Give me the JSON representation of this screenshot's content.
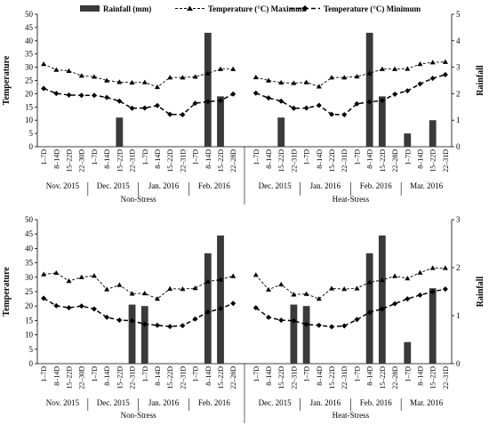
{
  "legend": {
    "rainfall": "Rainfall (mm)",
    "tmax": "Temperature (°C) Maximum",
    "tmin": "Temperature (°C) Minimum"
  },
  "chart_data": [
    {
      "type": "bar+line",
      "ylabel_left": "Temperature",
      "ylabel_right": "Rainfall",
      "ylim_left": [
        0,
        50
      ],
      "ylim_right": [
        0,
        5
      ],
      "yticks_left": [
        "0",
        "5",
        "10",
        "15",
        "20",
        "25",
        "30",
        "35",
        "40",
        "45",
        "50"
      ],
      "yticks_right": [
        "0",
        "1",
        "2",
        "3",
        "4",
        "5"
      ],
      "panels": [
        {
          "group_label": "Non-Stress",
          "x_labels": [
            "1–7D",
            "8–14D",
            "15–22D",
            "22–30D",
            "1–7D",
            "8–14D",
            "15–22D",
            "22–31D",
            "1–7D",
            "8–14D",
            "15–22D",
            "22–31D",
            "1–7D",
            "8–14D",
            "15–22D",
            "22–28D"
          ],
          "months": [
            {
              "label": "Nov. 2015",
              "span": 4
            },
            {
              "label": "Dec. 2015",
              "span": 4
            },
            {
              "label": "Jan. 2016",
              "span": 4
            },
            {
              "label": "Feb. 2016",
              "span": 4
            }
          ],
          "tmax": [
            31.2,
            29,
            28.6,
            26.8,
            26.4,
            25,
            24.4,
            24.2,
            24.3,
            22.5,
            26.1,
            26.1,
            26.4,
            27.7,
            29.3,
            29.3
          ],
          "tmin": [
            22,
            20.1,
            19.5,
            19.4,
            19.4,
            18.6,
            17.2,
            14.5,
            14.6,
            15.5,
            12.2,
            12.1,
            16.4,
            17,
            17.4,
            19.9
          ],
          "rainfall": [
            0,
            0,
            0,
            0,
            0,
            0,
            1.1,
            0,
            0,
            0,
            0,
            0,
            0,
            4.3,
            1.9,
            0
          ]
        },
        {
          "group_label": "Heat-Stress",
          "x_labels": [
            "1–7D",
            "8–14D",
            "15–22D",
            "22–31D",
            "1–7D",
            "8–14D",
            "15–22D",
            "22–31D",
            "1–7D",
            "8–14D",
            "15–22D",
            "22–28D",
            "1–7D",
            "8–14D",
            "15–22D",
            "22–31D"
          ],
          "months": [
            {
              "label": "Dec. 2015",
              "span": 4
            },
            {
              "label": "Jan. 2016",
              "span": 4
            },
            {
              "label": "Feb. 2016",
              "span": 4
            },
            {
              "label": "Mar. 2016",
              "span": 4
            }
          ],
          "tmax": [
            26.2,
            25,
            24.2,
            24,
            24.3,
            22.7,
            26.1,
            26.1,
            26.5,
            27.7,
            29.3,
            29.3,
            29.4,
            31.2,
            31.8,
            32
          ],
          "tmin": [
            20.2,
            18.4,
            17.2,
            14.5,
            14.6,
            15.6,
            12.2,
            12.1,
            16.2,
            16.9,
            17.4,
            19.8,
            21.1,
            23.7,
            25.8,
            27.2
          ],
          "rainfall": [
            0,
            0,
            1.1,
            0,
            0,
            0,
            0,
            0,
            0,
            4.3,
            1.9,
            0,
            0.5,
            0,
            1,
            0
          ]
        }
      ]
    },
    {
      "type": "bar+line",
      "ylabel_left": "Temperature",
      "ylabel_right": "Rainfall",
      "ylim_left": [
        0,
        50
      ],
      "ylim_right": [
        0,
        3
      ],
      "yticks_left": [
        "0",
        "5",
        "10",
        "15",
        "20",
        "25",
        "30",
        "35",
        "40",
        "45",
        "50"
      ],
      "yticks_right": [
        "0",
        "1",
        "2",
        "3"
      ],
      "panels": [
        {
          "group_label": "Non-Stress",
          "x_labels": [
            "1–7D",
            "8–14D",
            "15–22D",
            "22–30D",
            "1–7D",
            "8–14D",
            "15–22D",
            "22–31D",
            "1–7D",
            "8–14D",
            "15–22D",
            "22–31D",
            "1–7D",
            "8–14D",
            "15–22D",
            "22–28D"
          ],
          "months": [
            {
              "label": "Nov. 2015",
              "span": 4
            },
            {
              "label": "Dec. 2015",
              "span": 4
            },
            {
              "label": "Jan. 2016",
              "span": 4
            },
            {
              "label": "Feb. 2016",
              "span": 4
            }
          ],
          "tmax": [
            31,
            31.5,
            28.7,
            30,
            30.5,
            25.8,
            27.3,
            24.3,
            24.4,
            22.5,
            26,
            25.9,
            26.2,
            28.5,
            29.2,
            30.4
          ],
          "tmin": [
            22.7,
            20.1,
            19.4,
            20,
            19,
            16.1,
            15.1,
            14.9,
            13.7,
            13.3,
            12.9,
            13.2,
            15.5,
            17.9,
            19.1,
            20.9
          ],
          "rainfall": [
            0,
            0,
            0,
            0,
            0,
            0,
            0,
            1.23,
            1.2,
            0,
            0,
            0,
            0,
            2.3,
            2.67,
            0
          ]
        },
        {
          "group_label": "Heat-Stress",
          "x_labels": [
            "1–7D",
            "8–14D",
            "15–22D",
            "22–31D",
            "1–7D",
            "8–14D",
            "15–22D",
            "22–31D",
            "1–7D",
            "8–14D",
            "15–22D",
            "22–28D",
            "1–7D",
            "8–14D",
            "15–22D",
            "22–31D"
          ],
          "months": [
            {
              "label": "Dec. 2015",
              "span": 4
            },
            {
              "label": "Jan. 2016",
              "span": 4
            },
            {
              "label": "Feb. 2016",
              "span": 4
            },
            {
              "label": "Mar. 2016",
              "span": 4
            }
          ],
          "tmax": [
            30.8,
            25.7,
            27.5,
            24,
            24.2,
            22.5,
            26.1,
            25.9,
            26.1,
            28.3,
            29,
            30.4,
            29.6,
            31.6,
            33.2,
            33.2
          ],
          "tmin": [
            19.4,
            16.1,
            15.1,
            14.9,
            13.6,
            13.3,
            12.8,
            13.1,
            15.3,
            17.8,
            19,
            20.8,
            22.5,
            23.8,
            25,
            25.9
          ],
          "rainfall": [
            0,
            0,
            0,
            1.23,
            1.2,
            0,
            0,
            0,
            0,
            2.3,
            2.67,
            0,
            0.45,
            0,
            1.57,
            0
          ]
        }
      ]
    }
  ]
}
